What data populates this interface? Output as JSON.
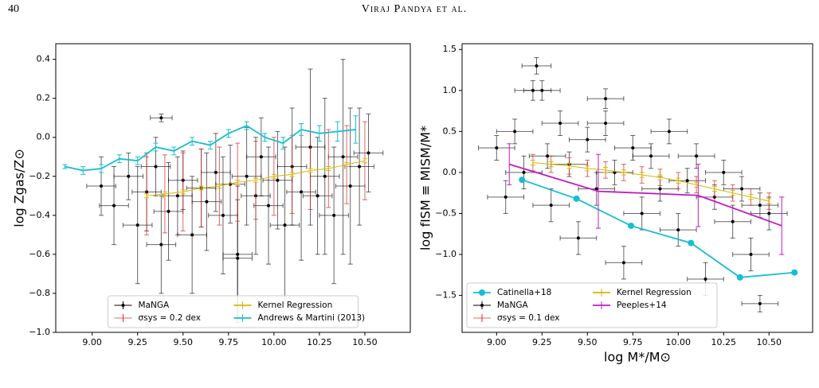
{
  "header": {
    "page": "40",
    "running_title": "Viraj Pandya et al."
  },
  "chart_data": [
    {
      "type": "errorbar",
      "ylabel": "log Zgas/Z⊙",
      "xlim": [
        8.8,
        10.75
      ],
      "ylim": [
        -1.0,
        0.48
      ],
      "xticks": [
        {
          "value": 9.0,
          "label": "9.00"
        },
        {
          "value": 9.25,
          "label": "9.25"
        },
        {
          "value": 9.5,
          "label": "9.50"
        },
        {
          "value": 9.75,
          "label": "9.75"
        },
        {
          "value": 10.0,
          "label": "10.00"
        },
        {
          "value": 10.25,
          "label": "10.25"
        },
        {
          "value": 10.5,
          "label": "10.50"
        }
      ],
      "yticks": [
        {
          "value": -1.0,
          "label": "−1.0"
        },
        {
          "value": -0.8,
          "label": "−0.8"
        },
        {
          "value": -0.6,
          "label": "−0.6"
        },
        {
          "value": -0.4,
          "label": "−0.4"
        },
        {
          "value": -0.2,
          "label": "−0.2"
        },
        {
          "value": 0.0,
          "label": "0.0"
        },
        {
          "value": 0.2,
          "label": "0.2"
        },
        {
          "value": 0.4,
          "label": "0.4"
        }
      ],
      "legend": "lower center",
      "series": [
        {
          "name": "MaNGA",
          "color": "#000000",
          "style": "points",
          "x": [
            9.05,
            9.12,
            9.2,
            9.25,
            9.3,
            9.35,
            9.38,
            9.42,
            9.47,
            9.5,
            9.55,
            9.6,
            9.63,
            9.68,
            9.72,
            9.76,
            9.8,
            9.85,
            9.9,
            9.93,
            9.97,
            10.02,
            10.06,
            10.1,
            10.15,
            10.2,
            10.24,
            10.28,
            10.33,
            10.38,
            10.42,
            10.47,
            10.52,
            9.38,
            9.8
          ],
          "values": [
            -0.25,
            -0.35,
            -0.2,
            -0.45,
            -0.28,
            -0.15,
            0.1,
            -0.38,
            -0.3,
            -0.22,
            -0.5,
            -0.26,
            -0.33,
            -0.18,
            -0.4,
            -0.24,
            -0.6,
            -0.2,
            -0.3,
            -0.1,
            -0.35,
            -0.22,
            -0.45,
            -0.15,
            -0.28,
            -0.05,
            -0.3,
            -0.2,
            -0.4,
            -0.1,
            -0.25,
            -0.15,
            -0.08,
            -0.55,
            -0.62
          ],
          "xerr": [
            0.08,
            0.08,
            0.08,
            0.08,
            0.08,
            0.08,
            0.06,
            0.08,
            0.08,
            0.08,
            0.08,
            0.08,
            0.08,
            0.08,
            0.08,
            0.08,
            0.08,
            0.08,
            0.08,
            0.08,
            0.08,
            0.08,
            0.08,
            0.08,
            0.08,
            0.08,
            0.08,
            0.08,
            0.08,
            0.08,
            0.08,
            0.08,
            0.08,
            0.08,
            0.08
          ],
          "yerr": [
            0.15,
            0.2,
            0.12,
            0.3,
            0.2,
            0.15,
            0.02,
            0.25,
            0.2,
            0.15,
            0.3,
            0.2,
            0.25,
            0.2,
            0.3,
            0.2,
            0.35,
            0.25,
            0.3,
            0.2,
            0.3,
            0.25,
            0.4,
            0.3,
            0.35,
            0.4,
            0.3,
            0.4,
            0.35,
            0.5,
            0.4,
            0.3,
            0.2,
            0.25,
            0.3
          ]
        },
        {
          "name": "σsys = 0.2 dex",
          "color": "#d62728",
          "style": "bars",
          "x": [
            9.3,
            9.4,
            9.5,
            9.6,
            9.7,
            9.8,
            9.9,
            10.0,
            10.1,
            10.2,
            10.3,
            10.4,
            10.5
          ],
          "values": [
            -0.3,
            -0.29,
            -0.28,
            -0.26,
            -0.25,
            -0.23,
            -0.22,
            -0.2,
            -0.19,
            -0.17,
            -0.16,
            -0.14,
            -0.12
          ],
          "yerr": [
            0.2,
            0.2,
            0.2,
            0.2,
            0.2,
            0.2,
            0.2,
            0.2,
            0.2,
            0.2,
            0.2,
            0.2,
            0.2
          ]
        },
        {
          "name": "Kernel Regression",
          "color": "#d9b400",
          "style": "line",
          "x": [
            9.3,
            9.4,
            9.5,
            9.6,
            9.7,
            9.8,
            9.9,
            10.0,
            10.1,
            10.2,
            10.3,
            10.4,
            10.5
          ],
          "values": [
            -0.3,
            -0.29,
            -0.28,
            -0.26,
            -0.25,
            -0.23,
            -0.22,
            -0.2,
            -0.19,
            -0.17,
            -0.16,
            -0.14,
            -0.12
          ],
          "yerr": [
            0.01,
            0.01,
            0.01,
            0.01,
            0.01,
            0.01,
            0.01,
            0.01,
            0.01,
            0.01,
            0.01,
            0.01,
            0.01
          ]
        },
        {
          "name": "Andrews & Martini (2013)",
          "color": "#17becf",
          "style": "line",
          "x": [
            8.85,
            8.95,
            9.05,
            9.15,
            9.25,
            9.35,
            9.45,
            9.55,
            9.65,
            9.75,
            9.85,
            9.95,
            10.05,
            10.15,
            10.25,
            10.35,
            10.45
          ],
          "values": [
            -0.15,
            -0.17,
            -0.16,
            -0.11,
            -0.12,
            -0.05,
            -0.07,
            -0.02,
            -0.04,
            0.02,
            0.06,
            0.0,
            -0.03,
            0.04,
            0.02,
            0.03,
            0.04
          ],
          "yerr": [
            0.01,
            0.02,
            0.02,
            0.02,
            0.02,
            0.02,
            0.02,
            0.02,
            0.02,
            0.02,
            0.02,
            0.02,
            0.03,
            0.03,
            0.04,
            0.05,
            0.07
          ]
        }
      ]
    },
    {
      "type": "errorbar",
      "ylabel": "log fISM ≡ MISM/M*",
      "xlabel": "log M*/M⊙",
      "xlim": [
        8.81,
        10.74
      ],
      "ylim": [
        -1.95,
        1.57
      ],
      "xticks": [
        {
          "value": 9.0,
          "label": "9.00"
        },
        {
          "value": 9.25,
          "label": "9.25"
        },
        {
          "value": 9.5,
          "label": "9.50"
        },
        {
          "value": 9.75,
          "label": "9.75"
        },
        {
          "value": 10.0,
          "label": "10.00"
        },
        {
          "value": 10.25,
          "label": "10.25"
        },
        {
          "value": 10.5,
          "label": "10.50"
        }
      ],
      "yticks": [
        {
          "value": -1.5,
          "label": "−1.5"
        },
        {
          "value": -1.0,
          "label": "−1.0"
        },
        {
          "value": -0.5,
          "label": "−0.5"
        },
        {
          "value": 0.0,
          "label": "0.0"
        },
        {
          "value": 0.5,
          "label": "0.5"
        },
        {
          "value": 1.0,
          "label": "1.0"
        },
        {
          "value": 1.5,
          "label": "1.5"
        }
      ],
      "legend": "lower left",
      "series": [
        {
          "name": "Catinella+18",
          "color": "#17becf",
          "style": "marker",
          "x": [
            9.14,
            9.44,
            9.74,
            10.07,
            10.34,
            10.64
          ],
          "values": [
            -0.09,
            -0.32,
            -0.65,
            -0.86,
            -1.28,
            -1.22
          ]
        },
        {
          "name": "MaNGA",
          "color": "#000000",
          "style": "points",
          "x": [
            9.0,
            9.05,
            9.1,
            9.15,
            9.2,
            9.22,
            9.28,
            9.3,
            9.35,
            9.4,
            9.45,
            9.5,
            9.55,
            9.6,
            9.65,
            9.7,
            9.75,
            9.8,
            9.85,
            9.9,
            9.95,
            10.0,
            10.05,
            10.1,
            10.15,
            10.2,
            10.25,
            10.3,
            10.35,
            10.4,
            10.45,
            10.5,
            9.25,
            9.6,
            10.45
          ],
          "values": [
            0.3,
            -0.3,
            0.5,
            0.0,
            1.0,
            1.3,
            0.2,
            -0.4,
            0.6,
            0.1,
            -0.8,
            0.4,
            -0.2,
            0.9,
            0.0,
            -1.1,
            0.3,
            -0.5,
            0.2,
            -0.2,
            0.5,
            -0.7,
            -0.1,
            0.2,
            -1.3,
            -0.3,
            0.0,
            -0.6,
            -0.2,
            -1.0,
            -0.4,
            -0.5,
            1.0,
            0.6,
            -1.6
          ],
          "xerr": [
            0.1,
            0.1,
            0.1,
            0.1,
            0.1,
            0.08,
            0.1,
            0.1,
            0.1,
            0.1,
            0.1,
            0.1,
            0.1,
            0.1,
            0.1,
            0.1,
            0.1,
            0.1,
            0.1,
            0.1,
            0.1,
            0.1,
            0.1,
            0.1,
            0.1,
            0.1,
            0.1,
            0.1,
            0.1,
            0.1,
            0.1,
            0.1,
            0.1,
            0.1,
            0.1
          ],
          "yerr": [
            0.15,
            0.2,
            0.15,
            0.2,
            0.12,
            0.1,
            0.15,
            0.2,
            0.15,
            0.15,
            0.2,
            0.15,
            0.2,
            0.12,
            0.15,
            0.2,
            0.15,
            0.2,
            0.15,
            0.15,
            0.15,
            0.2,
            0.15,
            0.15,
            0.2,
            0.15,
            0.15,
            0.2,
            0.15,
            0.2,
            0.15,
            0.2,
            0.12,
            0.15,
            0.1
          ]
        },
        {
          "name": "σsys = 0.1 dex",
          "color": "#d62728",
          "style": "bars",
          "x": [
            9.2,
            9.3,
            9.4,
            9.5,
            9.6,
            9.7,
            9.8,
            9.9,
            10.0,
            10.1,
            10.2,
            10.3,
            10.4,
            10.5
          ],
          "values": [
            0.12,
            0.1,
            0.08,
            0.05,
            0.03,
            0.0,
            -0.03,
            -0.06,
            -0.1,
            -0.15,
            -0.2,
            -0.25,
            -0.3,
            -0.35
          ],
          "yerr": [
            0.1,
            0.1,
            0.1,
            0.1,
            0.1,
            0.1,
            0.1,
            0.1,
            0.1,
            0.1,
            0.1,
            0.1,
            0.1,
            0.1
          ]
        },
        {
          "name": "Kernel Regression",
          "color": "#d9b400",
          "style": "line",
          "x": [
            9.2,
            9.3,
            9.4,
            9.5,
            9.6,
            9.7,
            9.8,
            9.9,
            10.0,
            10.1,
            10.2,
            10.3,
            10.4,
            10.5
          ],
          "values": [
            0.12,
            0.1,
            0.08,
            0.05,
            0.03,
            0.0,
            -0.03,
            -0.06,
            -0.1,
            -0.15,
            -0.2,
            -0.25,
            -0.3,
            -0.35
          ],
          "yerr": [
            0.03,
            0.03,
            0.03,
            0.03,
            0.03,
            0.03,
            0.03,
            0.03,
            0.03,
            0.03,
            0.03,
            0.03,
            0.03,
            0.03
          ]
        },
        {
          "name": "Peeples+14",
          "color": "#c21bc2",
          "style": "line",
          "x": [
            9.07,
            9.56,
            10.11,
            10.57
          ],
          "values": [
            0.1,
            -0.23,
            -0.28,
            -0.65
          ],
          "yerr": [
            0.25,
            0.45,
            0.38,
            0.35
          ]
        }
      ]
    }
  ]
}
